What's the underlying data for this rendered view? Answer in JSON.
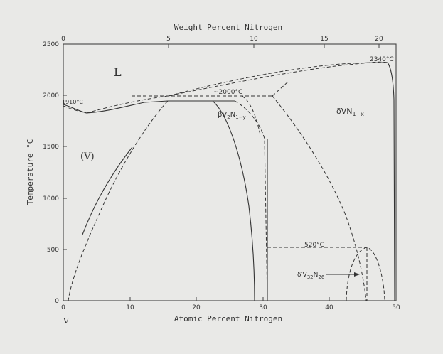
{
  "diagram": {
    "top_axis": {
      "title": "Weight Percent Nitrogen",
      "ticks": [
        "0",
        "5",
        "10",
        "15",
        "20"
      ]
    },
    "bottom_axis": {
      "title": "Atomic Percent Nitrogen",
      "ticks": [
        "0",
        "10",
        "20",
        "30",
        "40",
        "50"
      ]
    },
    "left_axis": {
      "title": "Temperature °C",
      "ticks": [
        "0",
        "500",
        "1000",
        "1500",
        "2000",
        "2500"
      ]
    },
    "element_label": "V",
    "phase_labels": {
      "liquid": "L",
      "vanadium": "(V)",
      "beta_prefix": "βV",
      "beta_sub1": "2",
      "beta_n": "N",
      "beta_sub2": "1−y",
      "delta_prefix": "δVN",
      "delta_sub": "1−x",
      "delta_prime_prefix": "δ′V",
      "delta_prime_sub1": "32",
      "delta_prime_n": "N",
      "delta_prime_sub2": "26"
    },
    "temperature_labels": {
      "t1910": "1910°C",
      "t2000": "~2000°C",
      "t2340": "2340°C",
      "t520": "520°C"
    }
  }
}
